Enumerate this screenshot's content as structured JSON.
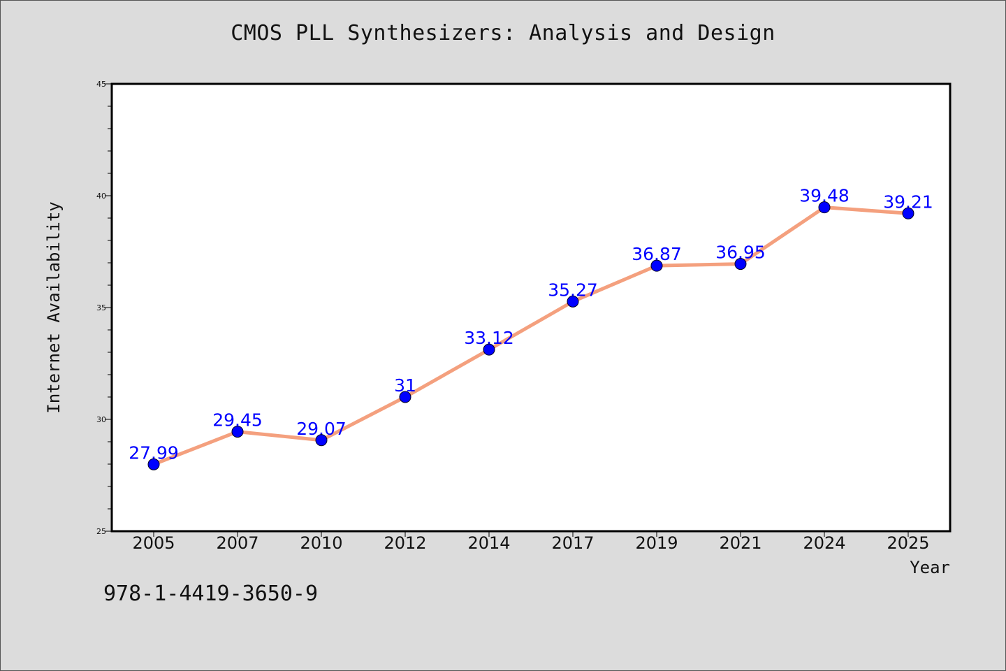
{
  "header": {
    "title": "CMOS PLL Synthesizers: Analysis and Design"
  },
  "footer": {
    "isbn": "978-1-4419-3650-9"
  },
  "chart_data": {
    "type": "line",
    "title": "CMOS PLL Synthesizers: Analysis and Design",
    "xlabel": "Year",
    "ylabel": "Internet Availability",
    "categories": [
      "2005",
      "2007",
      "2010",
      "2012",
      "2014",
      "2017",
      "2019",
      "2021",
      "2024",
      "2025"
    ],
    "series": [
      {
        "values": [
          27.99,
          29.45,
          29.07,
          31,
          33.12,
          35.27,
          36.87,
          36.95,
          39.48,
          39.21
        ],
        "labels": [
          "27.99",
          "29.45",
          "29.07",
          "31",
          "33.12",
          "35.27",
          "36.87",
          "36.95",
          "39.48",
          "39.21"
        ],
        "line_color": "#f4a07e",
        "marker_color": "#0000ff"
      }
    ],
    "ylim": [
      25,
      45
    ],
    "yticks": [
      "25",
      "30",
      "35",
      "40",
      "45"
    ],
    "grid": false,
    "legend": "none",
    "background": "#ffffff"
  }
}
